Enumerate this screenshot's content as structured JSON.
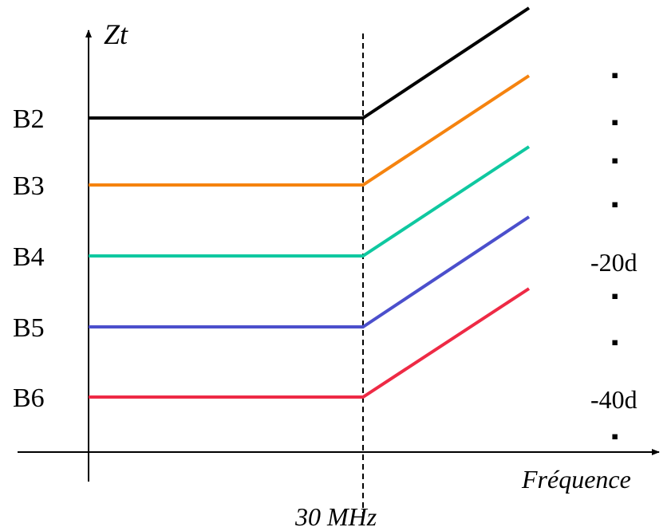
{
  "chart_data": {
    "type": "line",
    "ylabel": "Zt",
    "xlabel": "Fréquence",
    "breakpoint_label": "30 MHz",
    "series": [
      {
        "name": "B2",
        "color": "#000000"
      },
      {
        "name": "B3",
        "color": "#f5830f"
      },
      {
        "name": "B4",
        "color": "#0fc8a0"
      },
      {
        "name": "B5",
        "color": "#4b4fcc"
      },
      {
        "name": "B6",
        "color": "#ee2a45"
      }
    ],
    "right_texts": [
      "-20d",
      "-40d"
    ],
    "bullet": "▪",
    "grid": false,
    "legend": "none"
  }
}
